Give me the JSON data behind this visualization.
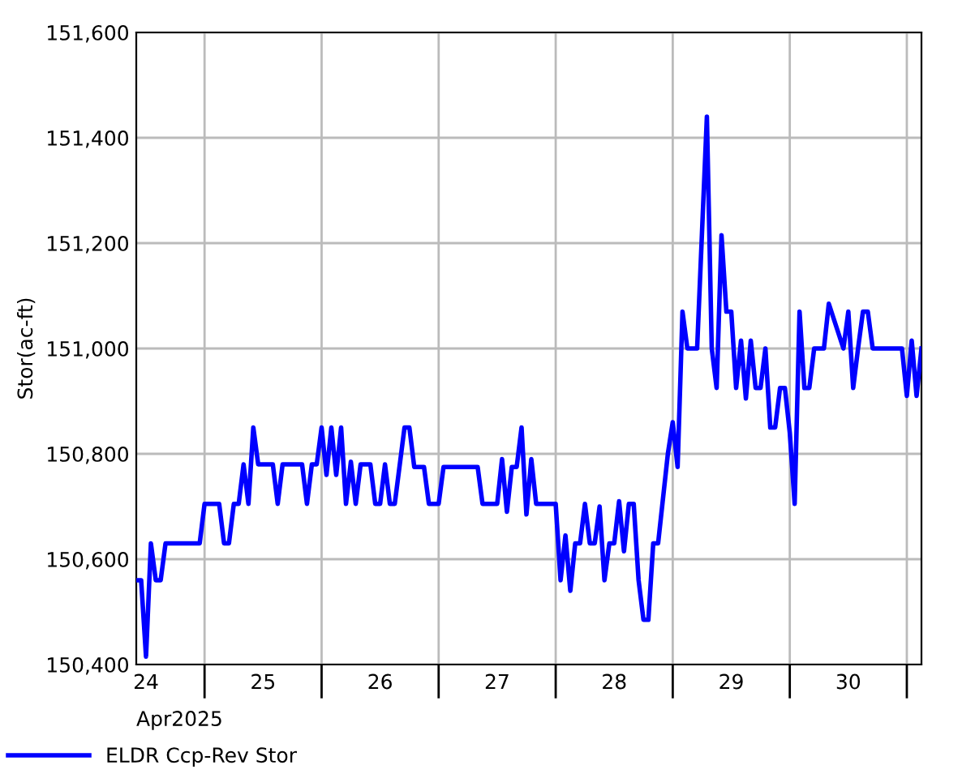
{
  "chart_data": {
    "type": "line",
    "ylabel": "Stor(ac-ft)",
    "xlabel": "Apr2025",
    "xlim": [
      "2025-04-24T10:00",
      "2025-05-01T03:00"
    ],
    "xticks": [
      {
        "value": "2025-04-24T12:00",
        "label": "24"
      },
      {
        "value": "2025-04-25T00:00",
        "label": null
      },
      {
        "value": "2025-04-25T12:00",
        "label": "25"
      },
      {
        "value": "2025-04-26T00:00",
        "label": null
      },
      {
        "value": "2025-04-26T12:00",
        "label": "26"
      },
      {
        "value": "2025-04-27T00:00",
        "label": null
      },
      {
        "value": "2025-04-27T12:00",
        "label": "27"
      },
      {
        "value": "2025-04-28T00:00",
        "label": null
      },
      {
        "value": "2025-04-28T12:00",
        "label": "28"
      },
      {
        "value": "2025-04-29T00:00",
        "label": null
      },
      {
        "value": "2025-04-29T12:00",
        "label": "29"
      },
      {
        "value": "2025-04-30T00:00",
        "label": null
      },
      {
        "value": "2025-04-30T12:00",
        "label": "30"
      },
      {
        "value": "2025-05-01T00:00",
        "label": null
      }
    ],
    "ylim": [
      150400,
      151600
    ],
    "yticks": [
      {
        "value": 150400,
        "label": "150,400"
      },
      {
        "value": 150600,
        "label": "150,600"
      },
      {
        "value": 150800,
        "label": "150,800"
      },
      {
        "value": 151000,
        "label": "151,000"
      },
      {
        "value": 151200,
        "label": "151,200"
      },
      {
        "value": 151400,
        "label": "151,400"
      },
      {
        "value": 151600,
        "label": "151,600"
      }
    ],
    "grid": true,
    "legend": "bottom left",
    "marker": "none",
    "line_style": "solid",
    "series": [
      {
        "name": "ELDR Ccp-Rev Stor",
        "color": "#0000ff",
        "x": [
          "2025-04-24T10:00",
          "2025-04-24T11:00",
          "2025-04-24T12:00",
          "2025-04-24T13:00",
          "2025-04-24T14:00",
          "2025-04-24T15:00",
          "2025-04-24T16:00",
          "2025-04-24T23:00",
          "2025-04-25T00:00",
          "2025-04-25T03:00",
          "2025-04-25T04:00",
          "2025-04-25T05:00",
          "2025-04-25T06:00",
          "2025-04-25T07:00",
          "2025-04-25T08:00",
          "2025-04-25T09:00",
          "2025-04-25T10:00",
          "2025-04-25T11:00",
          "2025-04-25T14:00",
          "2025-04-25T15:00",
          "2025-04-25T16:00",
          "2025-04-25T20:00",
          "2025-04-25T21:00",
          "2025-04-25T22:00",
          "2025-04-25T23:00",
          "2025-04-26T00:00",
          "2025-04-26T01:00",
          "2025-04-26T02:00",
          "2025-04-26T03:00",
          "2025-04-26T04:00",
          "2025-04-26T05:00",
          "2025-04-26T06:00",
          "2025-04-26T07:00",
          "2025-04-26T08:00",
          "2025-04-26T10:00",
          "2025-04-26T11:00",
          "2025-04-26T12:00",
          "2025-04-26T13:00",
          "2025-04-26T14:00",
          "2025-04-26T15:00",
          "2025-04-26T17:00",
          "2025-04-26T18:00",
          "2025-04-26T19:00",
          "2025-04-26T21:00",
          "2025-04-26T22:00",
          "2025-04-26T23:00",
          "2025-04-27T00:00",
          "2025-04-27T01:00",
          "2025-04-27T08:00",
          "2025-04-27T09:00",
          "2025-04-27T12:00",
          "2025-04-27T13:00",
          "2025-04-27T14:00",
          "2025-04-27T15:00",
          "2025-04-27T16:00",
          "2025-04-27T17:00",
          "2025-04-27T18:00",
          "2025-04-27T19:00",
          "2025-04-27T20:00",
          "2025-04-27T23:00",
          "2025-04-28T00:00",
          "2025-04-28T01:00",
          "2025-04-28T02:00",
          "2025-04-28T03:00",
          "2025-04-28T04:00",
          "2025-04-28T05:00",
          "2025-04-28T06:00",
          "2025-04-28T07:00",
          "2025-04-28T08:00",
          "2025-04-28T09:00",
          "2025-04-28T10:00",
          "2025-04-28T11:00",
          "2025-04-28T12:00",
          "2025-04-28T13:00",
          "2025-04-28T14:00",
          "2025-04-28T15:00",
          "2025-04-28T16:00",
          "2025-04-28T17:00",
          "2025-04-28T18:00",
          "2025-04-28T19:00",
          "2025-04-28T20:00",
          "2025-04-28T21:00",
          "2025-04-28T22:00",
          "2025-04-28T23:00",
          "2025-04-29T00:00",
          "2025-04-29T01:00",
          "2025-04-29T02:00",
          "2025-04-29T03:00",
          "2025-04-29T05:00",
          "2025-04-29T06:00",
          "2025-04-29T07:00",
          "2025-04-29T08:00",
          "2025-04-29T09:00",
          "2025-04-29T10:00",
          "2025-04-29T11:00",
          "2025-04-29T12:00",
          "2025-04-29T13:00",
          "2025-04-29T14:00",
          "2025-04-29T15:00",
          "2025-04-29T16:00",
          "2025-04-29T17:00",
          "2025-04-29T18:00",
          "2025-04-29T19:00",
          "2025-04-29T20:00",
          "2025-04-29T21:00",
          "2025-04-29T22:00",
          "2025-04-29T23:00",
          "2025-04-30T00:00",
          "2025-04-30T01:00",
          "2025-04-30T02:00",
          "2025-04-30T03:00",
          "2025-04-30T04:00",
          "2025-04-30T05:00",
          "2025-04-30T07:00",
          "2025-04-30T08:00",
          "2025-04-30T11:00",
          "2025-04-30T12:00",
          "2025-04-30T13:00",
          "2025-04-30T14:00",
          "2025-04-30T15:00",
          "2025-04-30T16:00",
          "2025-04-30T17:00",
          "2025-04-30T23:00",
          "2025-05-01T00:00",
          "2025-05-01T01:00",
          "2025-05-01T02:00",
          "2025-05-01T03:00"
        ],
        "values": [
          150560,
          150560,
          150415,
          150630,
          150560,
          150560,
          150630,
          150630,
          150705,
          150705,
          150630,
          150630,
          150705,
          150705,
          150780,
          150705,
          150850,
          150780,
          150780,
          150705,
          150780,
          150780,
          150705,
          150780,
          150780,
          150850,
          150760,
          150850,
          150760,
          150850,
          150705,
          150785,
          150705,
          150780,
          150780,
          150705,
          150705,
          150780,
          150705,
          150705,
          150850,
          150850,
          150775,
          150775,
          150705,
          150705,
          150705,
          150775,
          150775,
          150705,
          150705,
          150790,
          150690,
          150775,
          150775,
          150850,
          150685,
          150790,
          150705,
          150705,
          150705,
          150560,
          150645,
          150540,
          150630,
          150630,
          150705,
          150630,
          150630,
          150700,
          150560,
          150630,
          150630,
          150710,
          150615,
          150705,
          150705,
          150560,
          150485,
          150485,
          150630,
          150630,
          150715,
          150800,
          150860,
          150775,
          151070,
          151000,
          151000,
          151220,
          151440,
          151000,
          150925,
          151215,
          151070,
          151070,
          150925,
          151015,
          150905,
          151015,
          150925,
          150925,
          151000,
          150850,
          150850,
          150925,
          150925,
          150840,
          150705,
          151070,
          150925,
          150925,
          151000,
          151000,
          151085,
          151000,
          151070,
          150925,
          151000,
          151070,
          151070,
          151000,
          151000,
          150910,
          151015,
          150910,
          151000
        ]
      }
    ]
  }
}
